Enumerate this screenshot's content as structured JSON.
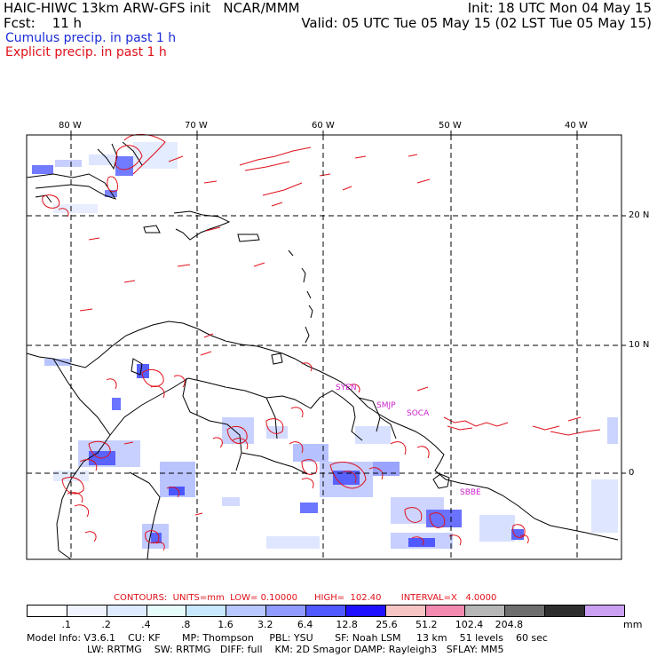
{
  "header": {
    "title": "HAIC-HIWC 13km ARW-GFS init   NCAR/MMM",
    "fcst": "Fcst:    11 h",
    "init": "Init: 18 UTC Mon 04 May 15",
    "valid": "Valid: 05 UTC Tue 05 May 15 (02 LST Tue 05 May 15)",
    "legend_cumulus": "Cumulus precip. in past 1 h",
    "legend_explicit": "Explicit precip. in past 1 h"
  },
  "map": {
    "lon_labels": [
      "80 W",
      "70 W",
      "60 W",
      "50 W",
      "40 W"
    ],
    "lat_labels": [
      "20 N",
      "10 N",
      "0"
    ],
    "stations": [
      "SYEN",
      "SMJP",
      "SOCA",
      "SBBE"
    ]
  },
  "contours": {
    "label": "CONTOURS:  UNITS=mm  LOW= 0.10000      HIGH=  102.40       INTERVAL=X   4.0000"
  },
  "colorbar": {
    "ticks": [
      ".1",
      ".2",
      ".4",
      ".8",
      "1.6",
      "3.2",
      "6.4",
      "12.8",
      "25.6",
      "51.2",
      "102.4",
      "204.8"
    ],
    "unit": "mm",
    "colors": [
      "#ffffff",
      "#eef3ff",
      "#ddeaff",
      "#e6fbfb",
      "#c8e8ff",
      "#b7c7ff",
      "#8f9bff",
      "#5058ff",
      "#1f10ff",
      "#f7c4c4",
      "#f28ab0",
      "#b6b6b6",
      "#6e6e6e",
      "#2e2e2e",
      "#c9a0f2"
    ]
  },
  "model_info": {
    "line1": "Model Info: V3.6.1    CU: KF       MP: Thompson     PBL: YSU       SF: Noah LSM     13 km    51 levels    60 sec",
    "line2": "LW: RRTMG    SW: RRTMG   DIFF: full    KM: 2D Smagor DAMP: Rayleigh3   SFLAY: MM5"
  },
  "style": {
    "coast_color": "#000000",
    "explicit_color": "#e0101a",
    "cumulus_color": "#3640ff",
    "station_color": "#cc22cc"
  }
}
